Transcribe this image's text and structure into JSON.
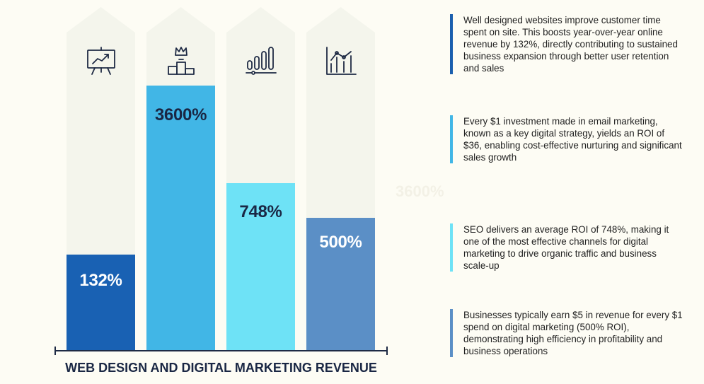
{
  "chart_data": {
    "type": "bar",
    "title": "WEB DESIGN AND DIGITAL MARKETING REVENUE",
    "categories": [
      "",
      "",
      "",
      ""
    ],
    "values": [
      132,
      3600,
      748,
      500
    ],
    "value_labels": [
      "132%",
      "3600%",
      "748%",
      "500%"
    ],
    "colors": [
      "#1961b3",
      "#41b6e6",
      "#6ee2f6",
      "#5b8fc6"
    ],
    "icons": [
      "presentation-chart-icon",
      "podium-crown-icon",
      "slider-bars-icon",
      "line-bar-chart-icon"
    ],
    "column_background": "#f4f5ec",
    "axis_color": "#1e2a44"
  },
  "descriptions": [
    "Well designed websites improve customer time spent on site. This boosts year-over-year online revenue by 132%, directly contributing to sustained business expansion through better user retention and sales",
    "Every $1 investment made in email marketing, known as a key digital strategy, yields an ROI of $36, enabling cost-effective nurturing and significant sales growth",
    "SEO delivers an average ROI of 748%, making it one of the most effective channels for digital marketing to drive organic traffic and business scale-up",
    "Businesses typically earn $5 in revenue for every $1 spend on digital marketing (500% ROI), demonstrating high efficiency in profitability and business operations"
  ],
  "ghost_text": "3600%"
}
